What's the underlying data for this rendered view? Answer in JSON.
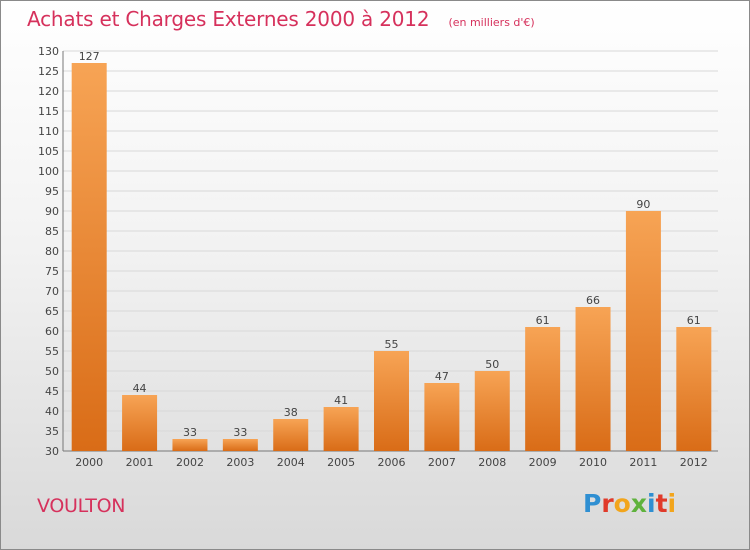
{
  "header": {
    "title": "Achats et Charges Externes 2000 à 2012",
    "unit": "(en milliers d'€)"
  },
  "footer": {
    "commune": "VOULTON",
    "logo_text": "Proxiti"
  },
  "colors": {
    "title": "#d6315c",
    "bar_light": "#f7a455",
    "bar_dark": "#d96c17",
    "grid": "#d8d8d8",
    "logo": [
      "#2f8fd2",
      "#e03a2a",
      "#f2a51c",
      "#5fb23d",
      "#2f8fd2",
      "#e03a2a",
      "#f2a51c"
    ]
  },
  "chart_data": {
    "type": "bar",
    "title": "Achats et Charges Externes 2000 à 2012",
    "subtitle": "(en milliers d'€)",
    "xlabel": "",
    "ylabel": "",
    "categories": [
      "2000",
      "2001",
      "2002",
      "2003",
      "2004",
      "2005",
      "2006",
      "2007",
      "2008",
      "2009",
      "2010",
      "2011",
      "2012"
    ],
    "values": [
      127,
      44,
      33,
      33,
      38,
      41,
      55,
      47,
      50,
      61,
      66,
      90,
      61
    ],
    "ylim": [
      30,
      130
    ],
    "ytick_step": 5,
    "grid": true,
    "legend": "none"
  }
}
